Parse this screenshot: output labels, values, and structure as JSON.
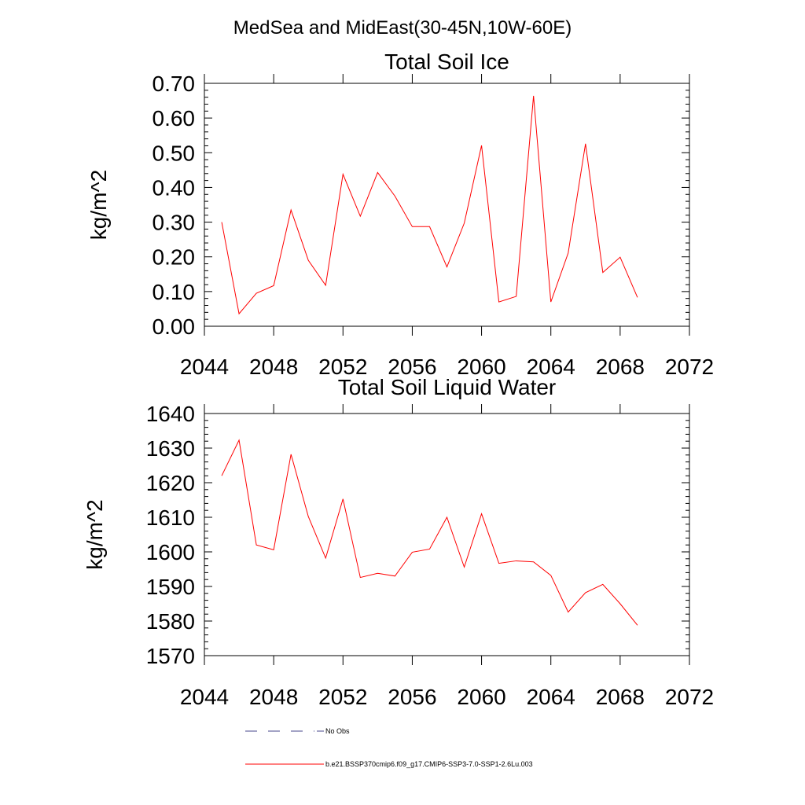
{
  "figure_title": "MedSea and MidEast(30-45N,10W-60E)",
  "colors": {
    "series_line": "#ff0000",
    "obs_line": "#4a4a8c",
    "axes": "#000000"
  },
  "legend": [
    {
      "label": "No Obs",
      "style": "dashed",
      "color": "#4a4a8c"
    },
    {
      "label": "b.e21.BSSP370cmip6.f09_g17.CMIP6-SSP3-7.0-SSP1-2.6Lu.003",
      "style": "solid",
      "color": "#ff0000"
    }
  ],
  "chart_data": [
    {
      "type": "line",
      "title": "Total Soil Ice",
      "xlabel": "",
      "ylabel": "kg/m^2",
      "xlim": [
        2044,
        2072
      ],
      "ylim": [
        0.0,
        0.7
      ],
      "xticks": [
        "2044",
        "2048",
        "2052",
        "2056",
        "2060",
        "2064",
        "2068",
        "2072"
      ],
      "yticks": [
        "0.00",
        "0.10",
        "0.20",
        "0.30",
        "0.40",
        "0.50",
        "0.60",
        "0.70"
      ],
      "grid": false,
      "x": [
        2045,
        2046,
        2047,
        2048,
        2049,
        2050,
        2051,
        2052,
        2053,
        2054,
        2055,
        2056,
        2057,
        2058,
        2059,
        2060,
        2061,
        2062,
        2063,
        2064,
        2065,
        2066,
        2067,
        2068,
        2069
      ],
      "series": [
        {
          "values": [
            0.3,
            0.036,
            0.095,
            0.117,
            0.335,
            0.19,
            0.118,
            0.438,
            0.317,
            0.443,
            0.375,
            0.287,
            0.287,
            0.171,
            0.297,
            0.521,
            0.07,
            0.086,
            0.664,
            0.07,
            0.211,
            0.526,
            0.155,
            0.199,
            0.083
          ]
        }
      ]
    },
    {
      "type": "line",
      "title": "Total Soil Liquid Water",
      "xlabel": "",
      "ylabel": "kg/m^2",
      "xlim": [
        2044,
        2072
      ],
      "ylim": [
        1570,
        1640
      ],
      "xticks": [
        "2044",
        "2048",
        "2052",
        "2056",
        "2060",
        "2064",
        "2068",
        "2072"
      ],
      "yticks": [
        "1570",
        "1580",
        "1590",
        "1600",
        "1610",
        "1620",
        "1630",
        "1640"
      ],
      "grid": false,
      "x": [
        2045,
        2046,
        2047,
        2048,
        2049,
        2050,
        2051,
        2052,
        2053,
        2054,
        2055,
        2056,
        2057,
        2058,
        2059,
        2060,
        2061,
        2062,
        2063,
        2064,
        2065,
        2066,
        2067,
        2068,
        2069
      ],
      "series": [
        {
          "values": [
            1622.0,
            1632.3,
            1602.0,
            1600.6,
            1628.2,
            1610.2,
            1598.2,
            1615.3,
            1592.6,
            1593.8,
            1593.0,
            1599.9,
            1600.8,
            1610.0,
            1595.6,
            1611.0,
            1596.7,
            1597.4,
            1597.1,
            1593.2,
            1582.6,
            1588.2,
            1590.6,
            1585.0,
            1578.8
          ]
        }
      ]
    }
  ]
}
